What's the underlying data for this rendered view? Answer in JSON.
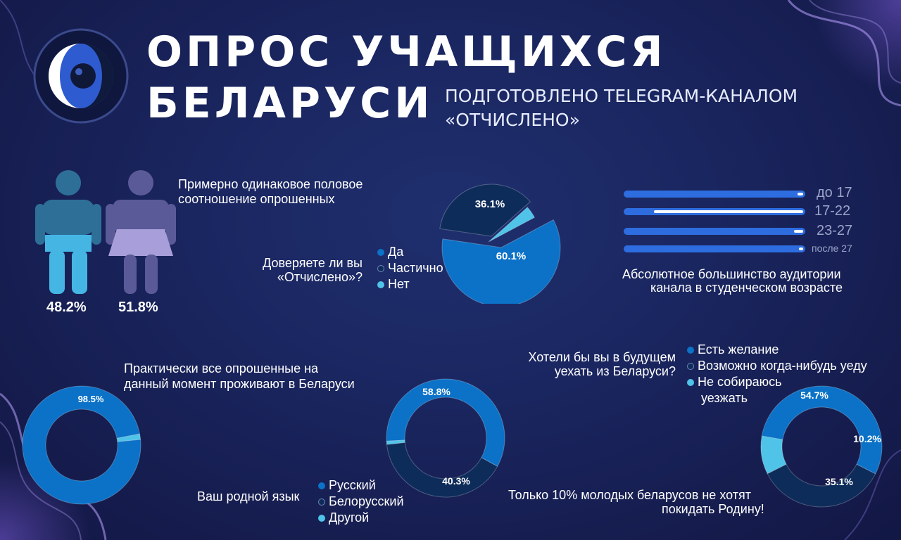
{
  "header": {
    "title_line1": "ОПРОС УЧАЩИХСЯ",
    "title_line2": "БЕЛАРУСИ",
    "subtitle_line1": "ПОДГОТОВЛЕНО TELEGRAM-КАНАЛОМ",
    "subtitle_line2": "«ОТЧИСЛЕНО»"
  },
  "colors": {
    "background": "#1a2660",
    "primary": "#0b72c7",
    "dark": "#0e2c5a",
    "light": "#4fc3e8",
    "male": "#2f7fa8",
    "female": "#6a6aa8"
  },
  "gender": {
    "caption_line1": "Примерно одинаковое половое",
    "caption_line2": "соотношение опрошенных",
    "male_label": "48.2%",
    "female_label": "51.8%",
    "male_icon": "male-figure-icon",
    "female_icon": "female-figure-icon"
  },
  "trust": {
    "question_line1": "Доверяете ли вы",
    "question_line2": "«Отчислено»?",
    "legend": [
      "Да",
      "Частично",
      "Нет"
    ]
  },
  "age": {
    "caption_line1": "Абсолютное большинство аудитории",
    "caption_line2": "канала в студенческом возрасте"
  },
  "residence": {
    "caption_line1": "Практически все опрошенные на",
    "caption_line2": "данный момент проживают в Беларуси"
  },
  "language": {
    "question": "Ваш родной язык",
    "legend": [
      "Русский",
      "Белорусский",
      "Другой"
    ]
  },
  "emigration": {
    "question_line1": "Хотели бы вы в будущем",
    "question_line2": "уехать из Беларуси?",
    "legend": [
      "Есть желание",
      "Возможно когда-нибудь уеду",
      "Не собираюсь",
      "уезжать"
    ],
    "footer_line1": "Только 10% молодых беларусов не хотят",
    "footer_line2": "покидать Родину!"
  },
  "chart_data": [
    {
      "type": "bar",
      "name": "gender",
      "categories": [
        "male",
        "female"
      ],
      "values": [
        48.2,
        51.8
      ]
    },
    {
      "type": "pie",
      "name": "trust",
      "labels": [
        "Да",
        "Частично",
        "Нет"
      ],
      "values": [
        60.1,
        36.1,
        3.8
      ],
      "data_labels": [
        "60.1%",
        "36.1%",
        ""
      ],
      "colors": [
        "#0b72c7",
        "#0e2c5a",
        "#4fc3e8"
      ]
    },
    {
      "type": "bar",
      "name": "age",
      "categories": [
        "до 17",
        "17-22",
        "23-27",
        "после 27"
      ],
      "values": [
        0.03,
        0.84,
        0.05,
        0.01
      ],
      "xlim": [
        0,
        1
      ]
    },
    {
      "type": "pie",
      "name": "residence",
      "donut": true,
      "labels": [
        "",
        ""
      ],
      "values": [
        98.5,
        1.5
      ],
      "data_labels": [
        "98.5%",
        ""
      ],
      "colors": [
        "#0b72c7",
        "#4fc3e8"
      ]
    },
    {
      "type": "pie",
      "name": "language",
      "donut": true,
      "labels": [
        "Русский",
        "Белорусский",
        "Другой"
      ],
      "values": [
        58.8,
        40.3,
        0.9
      ],
      "data_labels": [
        "58.8%",
        "40.3%",
        ""
      ],
      "colors": [
        "#0b72c7",
        "#0e2c5a",
        "#4fc3e8"
      ]
    },
    {
      "type": "pie",
      "name": "emigration",
      "donut": true,
      "labels": [
        "Есть желание",
        "Возможно когда-нибудь уеду",
        "Не собираюсь уезжать"
      ],
      "values": [
        54.7,
        35.1,
        10.2
      ],
      "data_labels": [
        "54.7%",
        "35.1%",
        "10.2%"
      ],
      "colors": [
        "#0b72c7",
        "#0e2c5a",
        "#4fc3e8"
      ]
    }
  ]
}
